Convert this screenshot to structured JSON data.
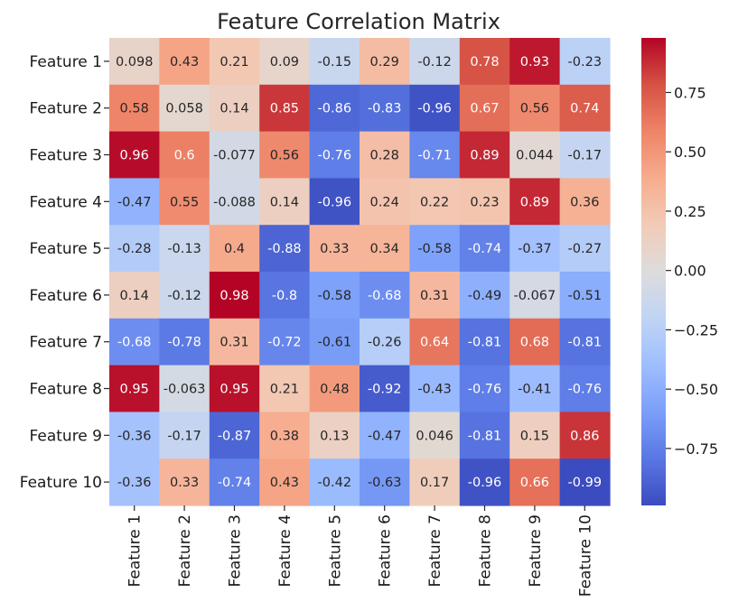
{
  "chart_data": {
    "type": "heatmap",
    "title": "Feature Correlation Matrix",
    "row_labels": [
      "Feature 1",
      "Feature 2",
      "Feature 3",
      "Feature 4",
      "Feature 5",
      "Feature 6",
      "Feature 7",
      "Feature 8",
      "Feature 9",
      "Feature 10"
    ],
    "col_labels": [
      "Feature 1",
      "Feature 2",
      "Feature 3",
      "Feature 4",
      "Feature 5",
      "Feature 6",
      "Feature 7",
      "Feature 8",
      "Feature 9",
      "Feature 10"
    ],
    "values": [
      [
        0.098,
        0.43,
        0.21,
        0.09,
        -0.15,
        0.29,
        -0.12,
        0.78,
        0.93,
        -0.23
      ],
      [
        0.58,
        0.058,
        0.14,
        0.85,
        -0.86,
        -0.83,
        -0.96,
        0.67,
        0.56,
        0.74
      ],
      [
        0.96,
        0.6,
        -0.077,
        0.56,
        -0.76,
        0.28,
        -0.71,
        0.89,
        0.044,
        -0.17
      ],
      [
        -0.47,
        0.55,
        -0.088,
        0.14,
        -0.96,
        0.24,
        0.22,
        0.23,
        0.89,
        0.36
      ],
      [
        -0.28,
        -0.13,
        0.4,
        -0.88,
        0.33,
        0.34,
        -0.58,
        -0.74,
        -0.37,
        -0.27
      ],
      [
        0.14,
        -0.12,
        0.98,
        -0.8,
        -0.58,
        -0.68,
        0.31,
        -0.49,
        -0.067,
        -0.51
      ],
      [
        -0.68,
        -0.78,
        0.31,
        -0.72,
        -0.61,
        -0.26,
        0.64,
        -0.81,
        0.68,
        -0.81
      ],
      [
        0.95,
        -0.063,
        0.95,
        0.21,
        0.48,
        -0.92,
        -0.43,
        -0.76,
        -0.41,
        -0.76
      ],
      [
        -0.36,
        -0.17,
        -0.87,
        0.38,
        0.13,
        -0.47,
        0.046,
        -0.81,
        0.15,
        0.86
      ],
      [
        -0.36,
        0.33,
        -0.74,
        0.43,
        -0.42,
        -0.63,
        0.17,
        -0.96,
        0.66,
        -0.99
      ]
    ],
    "value_labels": [
      [
        "0.098",
        "0.43",
        "0.21",
        "0.09",
        "-0.15",
        "0.29",
        "-0.12",
        "0.78",
        "0.93",
        "-0.23"
      ],
      [
        "0.58",
        "0.058",
        "0.14",
        "0.85",
        "-0.86",
        "-0.83",
        "-0.96",
        "0.67",
        "0.56",
        "0.74"
      ],
      [
        "0.96",
        "0.6",
        "-0.077",
        "0.56",
        "-0.76",
        "0.28",
        "-0.71",
        "0.89",
        "0.044",
        "-0.17"
      ],
      [
        "-0.47",
        "0.55",
        "-0.088",
        "0.14",
        "-0.96",
        "0.24",
        "0.22",
        "0.23",
        "0.89",
        "0.36"
      ],
      [
        "-0.28",
        "-0.13",
        "0.4",
        "-0.88",
        "0.33",
        "0.34",
        "-0.58",
        "-0.74",
        "-0.37",
        "-0.27"
      ],
      [
        "0.14",
        "-0.12",
        "0.98",
        "-0.8",
        "-0.58",
        "-0.68",
        "0.31",
        "-0.49",
        "-0.067",
        "-0.51"
      ],
      [
        "-0.68",
        "-0.78",
        "0.31",
        "-0.72",
        "-0.61",
        "-0.26",
        "0.64",
        "-0.81",
        "0.68",
        "-0.81"
      ],
      [
        "0.95",
        "-0.063",
        "0.95",
        "0.21",
        "0.48",
        "-0.92",
        "-0.43",
        "-0.76",
        "-0.41",
        "-0.76"
      ],
      [
        "-0.36",
        "-0.17",
        "-0.87",
        "0.38",
        "0.13",
        "-0.47",
        "0.046",
        "-0.81",
        "0.15",
        "0.86"
      ],
      [
        "-0.36",
        "0.33",
        "-0.74",
        "0.43",
        "-0.42",
        "-0.63",
        "0.17",
        "-0.96",
        "0.66",
        "-0.99"
      ]
    ],
    "vmin": -0.99,
    "vmax": 0.98,
    "colormap": "coolwarm",
    "colorbar_ticks": [
      0.75,
      0.5,
      0.25,
      0.0,
      -0.25,
      -0.5,
      -0.75
    ],
    "colorbar_tick_labels": [
      "0.75",
      "0.50",
      "0.25",
      "0.00",
      "−0.25",
      "−0.50",
      "−0.75"
    ],
    "colormap_stops": [
      "#3b4cc0",
      "#5977e3",
      "#7b9ff9",
      "#9ebeff",
      "#c0d4f5",
      "#dddcdc",
      "#f2cbb7",
      "#f7ac8e",
      "#ee8468",
      "#d65244",
      "#b40426"
    ],
    "annotation_colors": {
      "light": "#ffffff",
      "dark": "#262626"
    },
    "xlabel": "",
    "ylabel": ""
  }
}
